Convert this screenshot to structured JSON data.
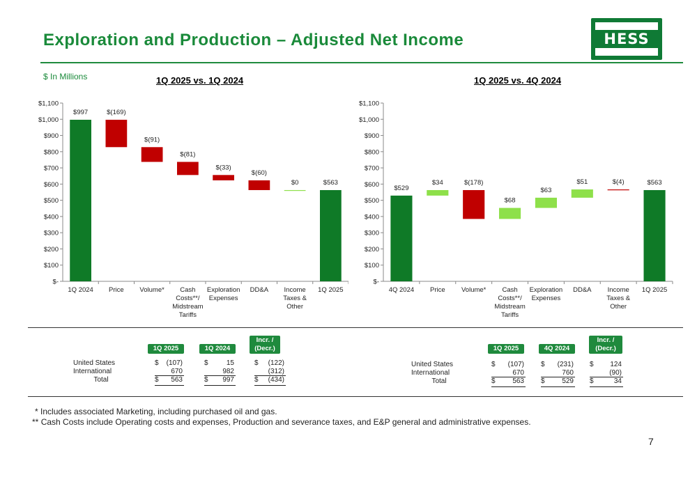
{
  "header": {
    "title": "Exploration and Production – Adjusted Net Income",
    "units": "$ In Millions",
    "logo_text": "HESS"
  },
  "colors": {
    "brand_green": "#1f8a3d",
    "total_bar": "#0f7a27",
    "decrease": "#c00000",
    "increase": "#8ee04a"
  },
  "chart_data": [
    {
      "type": "waterfall",
      "title": "1Q 2025 vs. 1Q 2024",
      "ylim": [
        0,
        1100
      ],
      "y_ticks": [
        "$-",
        "$100",
        "$200",
        "$300",
        "$400",
        "$500",
        "$600",
        "$700",
        "$800",
        "$900",
        "$1,000",
        "$1,100"
      ],
      "categories": [
        "1Q 2024",
        "Price",
        "Volume*",
        "Cash Costs**/ Midstream Tariffs",
        "Exploration Expenses",
        "DD&A",
        "Income Taxes & Other",
        "1Q 2025"
      ],
      "values": [
        997,
        -169,
        -91,
        -81,
        -33,
        -60,
        0,
        563
      ],
      "kinds": [
        "total",
        "delta",
        "delta",
        "delta",
        "delta",
        "delta",
        "delta",
        "total"
      ],
      "data_labels": [
        "$997",
        "$(169)",
        "$(91)",
        "$(81)",
        "$(33)",
        "$(60)",
        "$0",
        "$563"
      ]
    },
    {
      "type": "waterfall",
      "title": "1Q 2025 vs. 4Q 2024",
      "ylim": [
        0,
        1100
      ],
      "y_ticks": [
        "$-",
        "$100",
        "$200",
        "$300",
        "$400",
        "$500",
        "$600",
        "$700",
        "$800",
        "$900",
        "$1,000",
        "$1,100"
      ],
      "categories": [
        "4Q 2024",
        "Price",
        "Volume*",
        "Cash Costs**/ Midstream Tariffs",
        "Exploration Expenses",
        "DD&A",
        "Income Taxes & Other",
        "1Q 2025"
      ],
      "values": [
        529,
        34,
        -178,
        68,
        63,
        51,
        -4,
        563
      ],
      "kinds": [
        "total",
        "delta",
        "delta",
        "delta",
        "delta",
        "delta",
        "delta",
        "total"
      ],
      "data_labels": [
        "$529",
        "$34",
        "$(178)",
        "$68",
        "$63",
        "$51",
        "$(4)",
        "$563"
      ]
    }
  ],
  "tables": {
    "left": {
      "headers": [
        "1Q 2025",
        "1Q 2024",
        "Incr. / (Decr.)"
      ],
      "rows": [
        {
          "label": "United States",
          "v1": "(107)",
          "v2": "15",
          "v3": "(122)",
          "dollar": true
        },
        {
          "label": "International",
          "v1": "670",
          "v2": "982",
          "v3": "(312)",
          "dollar": false
        },
        {
          "label": "Total",
          "v1": "563",
          "v2": "997",
          "v3": "(434)",
          "dollar": true
        }
      ]
    },
    "right": {
      "headers": [
        "1Q 2025",
        "4Q 2024",
        "Incr. / (Decr.)"
      ],
      "rows": [
        {
          "label": "United States",
          "v1": "(107)",
          "v2": "(231)",
          "v3": "124",
          "dollar": true
        },
        {
          "label": "International",
          "v1": "670",
          "v2": "760",
          "v3": "(90)",
          "dollar": false
        },
        {
          "label": "Total",
          "v1": "563",
          "v2": "529",
          "v3": "34",
          "dollar": true
        }
      ]
    },
    "dollar_sign": "$"
  },
  "footnotes": {
    "note1_marker": "*",
    "note1": "Includes associated Marketing, including purchased oil and gas.",
    "note2_marker": "**",
    "note2": "Cash Costs include Operating costs and expenses, Production and severance taxes, and E&P general and administrative expenses."
  },
  "page_number": "7"
}
